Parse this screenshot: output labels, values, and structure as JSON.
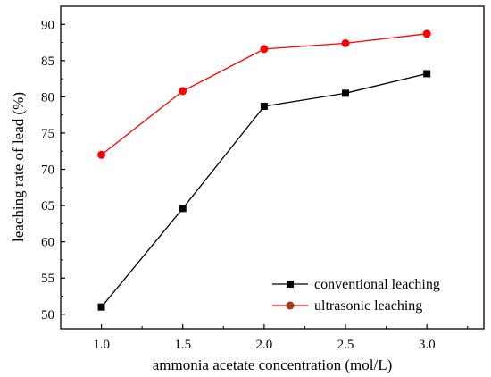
{
  "chart_data": {
    "type": "line",
    "title": "",
    "xlabel": "ammonia acetate concentration (mol/L)",
    "ylabel": "leaching rate of lead (%)",
    "x": [
      1.0,
      1.5,
      2.0,
      2.5,
      3.0
    ],
    "xticks": [
      "1.0",
      "1.5",
      "2.0",
      "2.5",
      "3.0"
    ],
    "yticks": [
      "50",
      "55",
      "60",
      "65",
      "70",
      "75",
      "80",
      "85",
      "90"
    ],
    "xlim": [
      0.75,
      3.35
    ],
    "ylim": [
      48,
      92.5
    ],
    "grid": false,
    "legend_position": "bottom-right",
    "series": [
      {
        "name": "conventional leaching",
        "values": [
          51.0,
          64.6,
          78.7,
          80.5,
          83.2
        ],
        "color": "#000000",
        "marker": "square"
      },
      {
        "name": "ultrasonic leaching",
        "values": [
          72.0,
          80.8,
          86.6,
          87.4,
          88.7
        ],
        "color": "#ff0000",
        "marker": "circle"
      }
    ]
  }
}
